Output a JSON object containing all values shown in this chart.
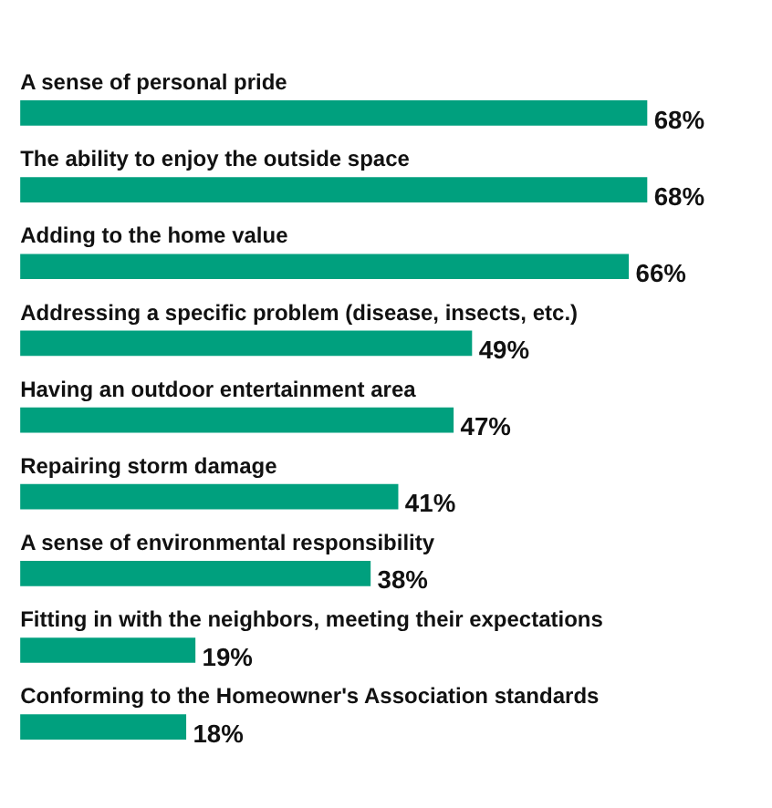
{
  "chart_data": {
    "type": "bar",
    "orientation": "horizontal",
    "categories": [
      "A sense of personal pride",
      "The ability to enjoy the outside space",
      "Adding to the home value",
      "Addressing a specific problem (disease, insects, etc.)",
      "Having an outdoor entertainment area",
      "Repairing storm damage",
      "A sense of environmental responsibility",
      "Fitting in with the neighbors, meeting their expectations",
      "Conforming to the Homeowner's Association standards"
    ],
    "values": [
      68,
      68,
      66,
      49,
      47,
      41,
      38,
      19,
      18
    ],
    "value_labels": [
      "68%",
      "68%",
      "66%",
      "49%",
      "47%",
      "41%",
      "38%",
      "19%",
      "18%"
    ],
    "color": "#00a07e"
  }
}
